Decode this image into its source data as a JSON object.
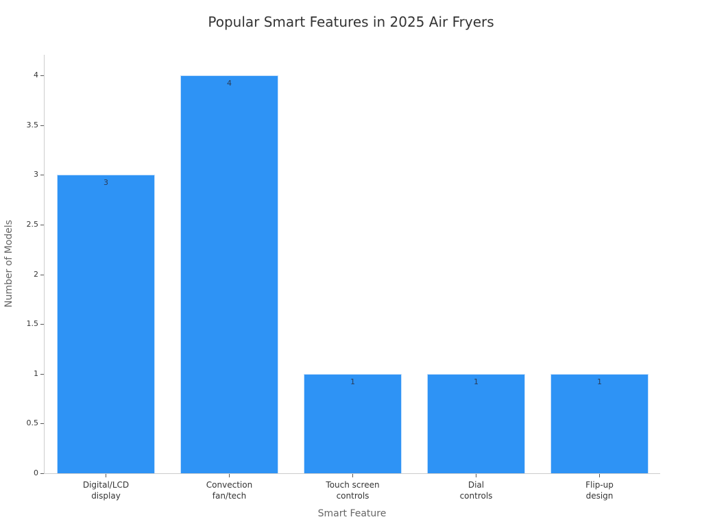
{
  "chart_data": {
    "type": "bar",
    "title": "Popular Smart Features in 2025 Air Fryers",
    "xlabel": "Smart Feature",
    "ylabel": "Number of Models",
    "categories": [
      "Digital/LCD\ndisplay",
      "Convection\nfan/tech",
      "Touch screen\ncontrols",
      "Dial\ncontrols",
      "Flip-up\ndesign"
    ],
    "values": [
      3,
      4,
      1,
      1,
      1
    ],
    "value_labels": [
      "3",
      "4",
      "1",
      "1",
      "1"
    ],
    "ylim": [
      0,
      4.2
    ],
    "yticks": [
      "0",
      "0.5",
      "1",
      "1.5",
      "2",
      "2.5",
      "3",
      "3.5",
      "4"
    ],
    "grid": false,
    "legend": null,
    "bar_color": "#2e93f5"
  }
}
